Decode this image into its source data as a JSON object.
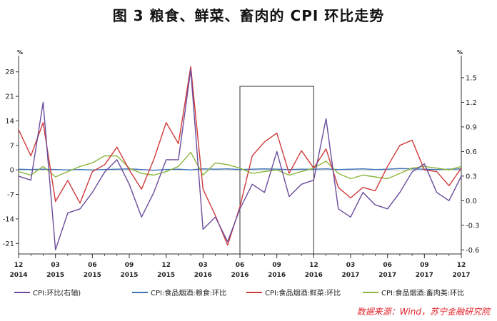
{
  "title": "图 3   粮食、鲜菜、畜肉的 CPI 环比走势",
  "source": "数据来源：Wind，苏宁金融研究院",
  "colors": {
    "series_cpi": "#6a4c9c",
    "series_grain": "#3d73b8",
    "series_veg": "#cf3a3a",
    "series_meat": "#8cb63c",
    "axis": "#333333",
    "highlight_box": "#333333"
  },
  "chart_data": {
    "type": "line",
    "left_axis": {
      "unit": "%",
      "ylim": [
        -24,
        31
      ],
      "ticks": [
        28,
        21,
        14,
        7,
        0,
        -7,
        -14,
        -21
      ],
      "tick_labels": [
        "28",
        "21",
        "14",
        "7",
        "0",
        "-7",
        "-14",
        "-21"
      ]
    },
    "right_axis": {
      "unit": "%",
      "ylim": [
        -0.65,
        1.7
      ],
      "ticks": [
        1.5,
        1.2,
        0.9,
        0.6,
        0.3,
        0.0,
        -0.3,
        -0.6
      ],
      "tick_labels": [
        "1.5",
        "1.2",
        "0.9",
        "0.6",
        "0.3",
        "0.0",
        "-0.3",
        "-0.6"
      ]
    },
    "x_tick_labels": [
      {
        "month": "12",
        "year": "2014"
      },
      {
        "month": "03",
        "year": "2015"
      },
      {
        "month": "06",
        "year": "2015"
      },
      {
        "month": "09",
        "year": "2015"
      },
      {
        "month": "12",
        "year": "2015"
      },
      {
        "month": "03",
        "year": "2016"
      },
      {
        "month": "06",
        "year": "2016"
      },
      {
        "month": "09",
        "year": "2016"
      },
      {
        "month": "12",
        "year": "2016"
      },
      {
        "month": "03",
        "year": "2017"
      },
      {
        "month": "06",
        "year": "2017"
      },
      {
        "month": "09",
        "year": "2017"
      },
      {
        "month": "12",
        "year": "2017"
      }
    ],
    "highlight_range": [
      "2016-06",
      "2016-12"
    ],
    "x": [
      "2014-12",
      "2015-01",
      "2015-02",
      "2015-03",
      "2015-04",
      "2015-05",
      "2015-06",
      "2015-07",
      "2015-08",
      "2015-09",
      "2015-10",
      "2015-11",
      "2015-12",
      "2016-01",
      "2016-02",
      "2016-03",
      "2016-04",
      "2016-05",
      "2016-06",
      "2016-07",
      "2016-08",
      "2016-09",
      "2016-10",
      "2016-11",
      "2016-12",
      "2017-01",
      "2017-02",
      "2017-03",
      "2017-04",
      "2017-05",
      "2017-06",
      "2017-07",
      "2017-08",
      "2017-09",
      "2017-10",
      "2017-11",
      "2017-12"
    ],
    "series": [
      {
        "name": "CPI:环比(右轴)",
        "axis": "right",
        "values": [
          0.3,
          0.25,
          1.2,
          -0.6,
          -0.15,
          -0.1,
          0.1,
          0.35,
          0.5,
          0.2,
          -0.2,
          0.1,
          0.5,
          0.5,
          1.6,
          -0.35,
          -0.2,
          -0.5,
          -0.1,
          0.2,
          0.1,
          0.6,
          0.05,
          0.2,
          0.25,
          1.0,
          -0.1,
          -0.2,
          0.1,
          -0.05,
          -0.1,
          0.1,
          0.35,
          0.45,
          0.1,
          0.0,
          0.3
        ]
      },
      {
        "name": "CPI:食品烟酒:粮食:环比",
        "axis": "left",
        "values": [
          0.2,
          0.1,
          0.2,
          0.1,
          0.0,
          0.1,
          0.0,
          0.1,
          0.2,
          0.3,
          0.1,
          -0.1,
          0.1,
          0.2,
          0.0,
          0.3,
          0.2,
          0.3,
          0.1,
          0.2,
          0.3,
          0.2,
          0.1,
          0.2,
          0.2,
          0.3,
          0.1,
          0.2,
          0.3,
          0.1,
          0.2,
          0.4,
          0.3,
          0.2,
          0.1,
          0.2,
          0.3
        ]
      },
      {
        "name": "CPI:食品烟酒:鲜菜:环比",
        "axis": "left",
        "values": [
          11.5,
          4.0,
          13.5,
          -9.0,
          -3.0,
          -9.5,
          -0.5,
          1.5,
          6.5,
          0.0,
          -5.5,
          3.0,
          13.5,
          7.5,
          29.5,
          -5.5,
          -13.0,
          -21.5,
          -10.5,
          4.0,
          8.0,
          10.5,
          -1.0,
          5.5,
          0.5,
          6.0,
          -5.0,
          -8.0,
          -5.0,
          -6.0,
          1.0,
          7.0,
          8.5,
          0.0,
          -0.5,
          -4.5,
          0.5
        ]
      },
      {
        "name": "CPI:食品烟酒:畜肉类:环比",
        "axis": "left",
        "values": [
          -0.5,
          -1.5,
          1.0,
          -2.0,
          -0.5,
          1.0,
          2.0,
          4.0,
          4.0,
          0.5,
          -1.0,
          -1.5,
          -0.5,
          1.0,
          5.0,
          -1.5,
          2.0,
          1.5,
          0.5,
          -1.0,
          -0.5,
          0.0,
          -1.5,
          -0.5,
          0.5,
          2.5,
          -1.0,
          -2.5,
          -1.5,
          -2.0,
          -2.5,
          -1.0,
          0.5,
          1.0,
          0.5,
          0.0,
          1.0
        ]
      }
    ],
    "legend_placement": "bottom",
    "grid": false
  }
}
